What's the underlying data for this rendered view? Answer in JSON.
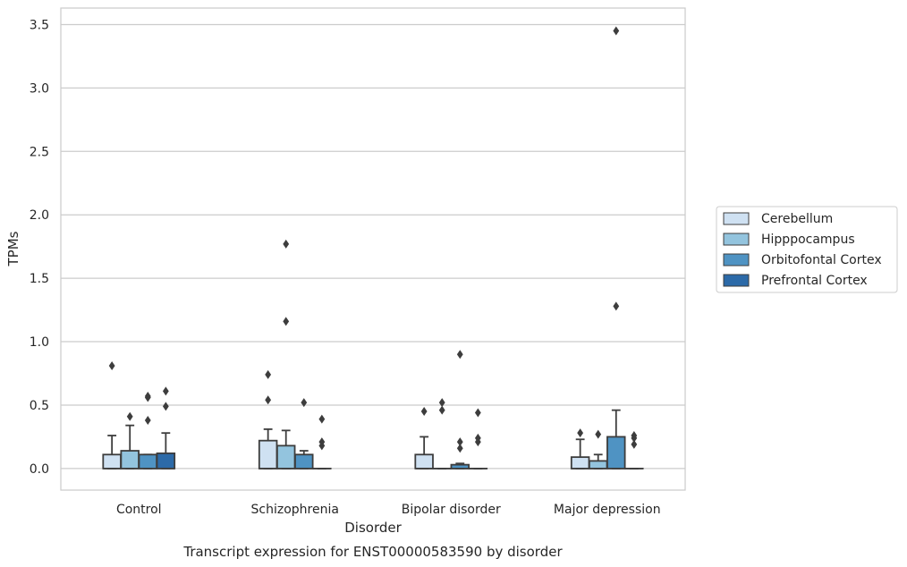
{
  "chart_data": {
    "type": "box",
    "title": "",
    "caption": "Transcript expression for ENST00000583590 by disorder",
    "xlabel": "Disorder",
    "ylabel": "TPMs",
    "ylim": [
      -0.17,
      3.63
    ],
    "yticks": [
      "0.0",
      "0.5",
      "1.0",
      "1.5",
      "2.0",
      "2.5",
      "3.0",
      "3.5"
    ],
    "grid": "horizontal",
    "legend_position": "center-right",
    "categories": [
      "Control",
      "Schizophrenia",
      "Bipolar disorder",
      "Major depression"
    ],
    "series": [
      {
        "name": "Cerebellum",
        "color": "#cfe1f2",
        "boxes": [
          {
            "q1": 0.0,
            "median": 0.0,
            "q3": 0.11,
            "whisker_low": 0.0,
            "whisker_high": 0.26,
            "outliers": [
              0.81
            ]
          },
          {
            "q1": 0.0,
            "median": 0.0,
            "q3": 0.22,
            "whisker_low": 0.0,
            "whisker_high": 0.31,
            "outliers": [
              0.54,
              0.74
            ]
          },
          {
            "q1": 0.0,
            "median": 0.0,
            "q3": 0.11,
            "whisker_low": 0.0,
            "whisker_high": 0.25,
            "outliers": [
              0.45
            ]
          },
          {
            "q1": 0.0,
            "median": 0.0,
            "q3": 0.09,
            "whisker_low": 0.0,
            "whisker_high": 0.23,
            "outliers": [
              0.28
            ]
          }
        ]
      },
      {
        "name": "Hipppocampus",
        "color": "#93c4de",
        "boxes": [
          {
            "q1": 0.0,
            "median": 0.0,
            "q3": 0.14,
            "whisker_low": 0.0,
            "whisker_high": 0.34,
            "outliers": [
              0.41
            ]
          },
          {
            "q1": 0.0,
            "median": 0.0,
            "q3": 0.18,
            "whisker_low": 0.0,
            "whisker_high": 0.3,
            "outliers": [
              1.16,
              1.77
            ]
          },
          {
            "q1": 0.0,
            "median": 0.0,
            "q3": 0.0,
            "whisker_low": 0.0,
            "whisker_high": 0.0,
            "outliers": [
              0.46,
              0.52
            ]
          },
          {
            "q1": 0.0,
            "median": 0.0,
            "q3": 0.06,
            "whisker_low": 0.0,
            "whisker_high": 0.11,
            "outliers": [
              0.27
            ]
          }
        ]
      },
      {
        "name": "Orbitofontal Cortex",
        "color": "#4f93c3",
        "boxes": [
          {
            "q1": 0.0,
            "median": 0.0,
            "q3": 0.11,
            "whisker_low": 0.0,
            "whisker_high": 0.11,
            "outliers": [
              0.38,
              0.56,
              0.57
            ]
          },
          {
            "q1": 0.0,
            "median": 0.0,
            "q3": 0.11,
            "whisker_low": 0.0,
            "whisker_high": 0.14,
            "outliers": [
              0.52
            ]
          },
          {
            "q1": 0.0,
            "median": 0.0,
            "q3": 0.03,
            "whisker_low": 0.0,
            "whisker_high": 0.04,
            "outliers": [
              0.16,
              0.21,
              0.9
            ]
          },
          {
            "q1": 0.0,
            "median": 0.0,
            "q3": 0.25,
            "whisker_low": 0.0,
            "whisker_high": 0.46,
            "outliers": [
              1.28,
              3.45
            ]
          }
        ]
      },
      {
        "name": "Prefrontal Cortex",
        "color": "#2c6aa8",
        "boxes": [
          {
            "q1": 0.0,
            "median": 0.0,
            "q3": 0.12,
            "whisker_low": 0.0,
            "whisker_high": 0.28,
            "outliers": [
              0.49,
              0.61
            ]
          },
          {
            "q1": 0.0,
            "median": 0.0,
            "q3": 0.0,
            "whisker_low": 0.0,
            "whisker_high": 0.0,
            "outliers": [
              0.18,
              0.21,
              0.39
            ]
          },
          {
            "q1": 0.0,
            "median": 0.0,
            "q3": 0.0,
            "whisker_low": 0.0,
            "whisker_high": 0.0,
            "outliers": [
              0.21,
              0.24,
              0.44
            ]
          },
          {
            "q1": 0.0,
            "median": 0.0,
            "q3": 0.0,
            "whisker_low": 0.0,
            "whisker_high": 0.0,
            "outliers": [
              0.19,
              0.24,
              0.26
            ]
          }
        ]
      }
    ]
  },
  "colors": {
    "grid": "#cccccc",
    "frame": "#cccccc",
    "box_edge": "#3d3d3d",
    "outlier": "#3d3d3d"
  }
}
